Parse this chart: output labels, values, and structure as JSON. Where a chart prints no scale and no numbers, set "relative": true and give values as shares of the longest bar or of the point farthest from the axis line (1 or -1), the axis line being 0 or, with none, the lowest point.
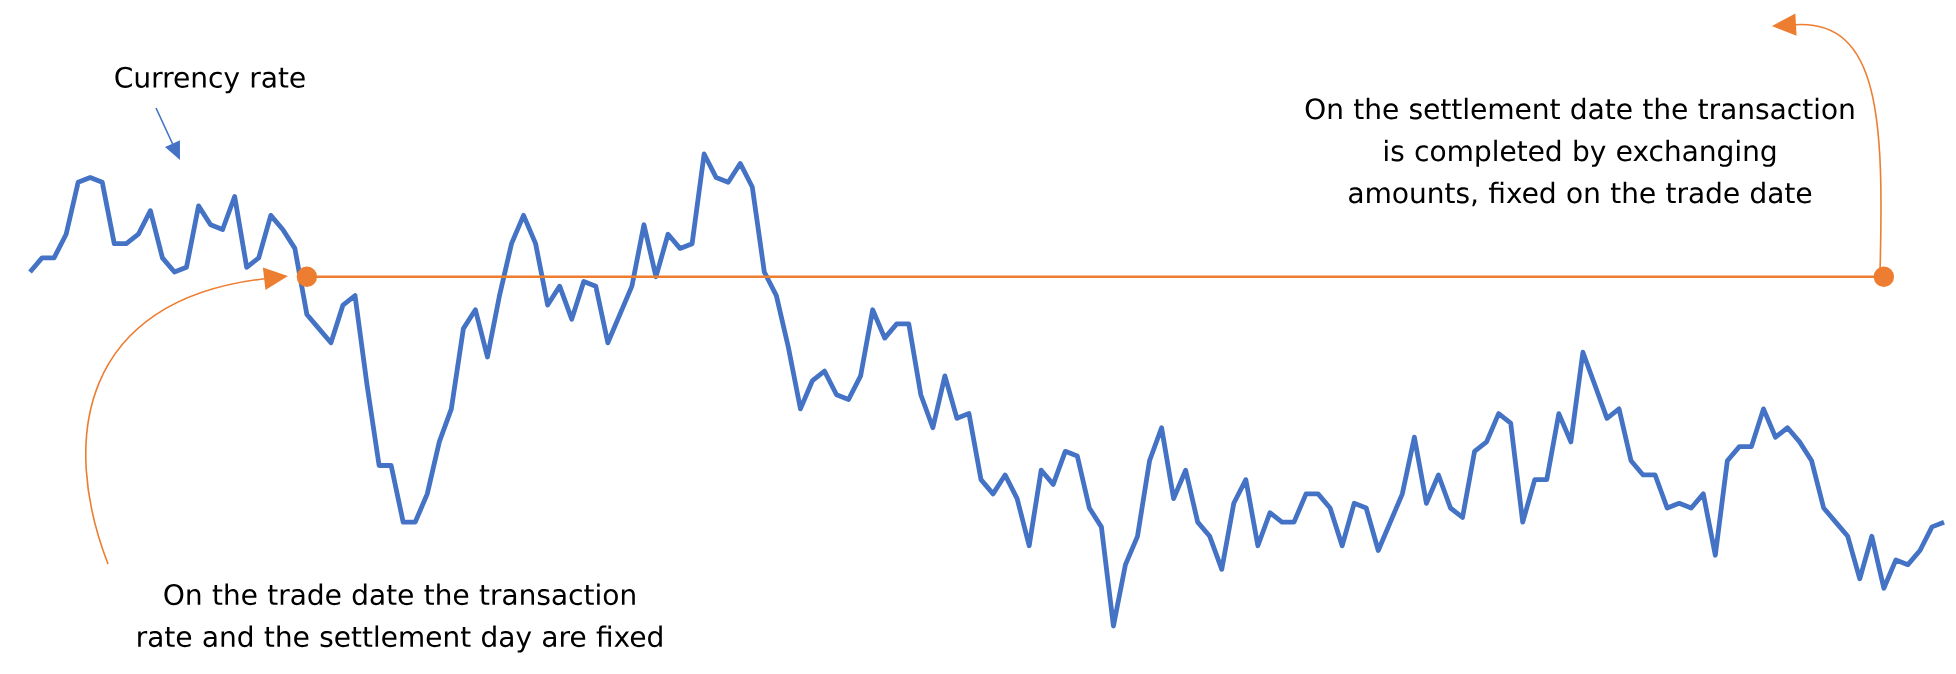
{
  "chart_data": {
    "type": "line",
    "relative": true,
    "categories": [
      null,
      null,
      null,
      null,
      null,
      null,
      null,
      null,
      null,
      null,
      null,
      null,
      null,
      null,
      null,
      null,
      null,
      null,
      null,
      null,
      null,
      null,
      null,
      null,
      null,
      null,
      null,
      null,
      null,
      null,
      null,
      null,
      null,
      null,
      null,
      null,
      null,
      null,
      null,
      null,
      null,
      null,
      null,
      null,
      null,
      null,
      null,
      null,
      null,
      null,
      null,
      null,
      null,
      null,
      null,
      null,
      null,
      null,
      null,
      null,
      null,
      null,
      null,
      null,
      null,
      null,
      null,
      null,
      null,
      null,
      null,
      null,
      null,
      null,
      null,
      null,
      null,
      null,
      null,
      null,
      null,
      null,
      null,
      null,
      null,
      null,
      null,
      null,
      null,
      null,
      null,
      null,
      null,
      null,
      null,
      null,
      null,
      null,
      null,
      null,
      null,
      null,
      null,
      null,
      null,
      null,
      null,
      null,
      null,
      null,
      null,
      null,
      null,
      null,
      null,
      null,
      null,
      null,
      null,
      null,
      null,
      null,
      null,
      null,
      null,
      null,
      null,
      null,
      null,
      null,
      null,
      null,
      null,
      null,
      null,
      null,
      null,
      null,
      null,
      null,
      null,
      null,
      null,
      null,
      null,
      null,
      null,
      null,
      null,
      null,
      null,
      null,
      null,
      null,
      null,
      null,
      null,
      null,
      null,
      null
    ],
    "series": [
      {
        "color": "#4472c4",
        "values": [
          0.75,
          0.78,
          0.78,
          0.83,
          0.94,
          0.95,
          0.94,
          0.81,
          0.81,
          0.83,
          0.88,
          0.78,
          0.75,
          0.76,
          0.89,
          0.85,
          0.84,
          0.91,
          0.76,
          0.78,
          0.87,
          0.84,
          0.8,
          0.66,
          0.63,
          0.6,
          0.68,
          0.7,
          0.51,
          0.34,
          0.34,
          0.22,
          0.22,
          0.28,
          0.39,
          0.46,
          0.63,
          0.67,
          0.57,
          0.7,
          0.81,
          0.87,
          0.81,
          0.68,
          0.72,
          0.65,
          0.73,
          0.72,
          0.6,
          0.66,
          0.72,
          0.85,
          0.74,
          0.83,
          0.8,
          0.81,
          1,
          0.95,
          0.94,
          0.98,
          0.93,
          0.75,
          0.7,
          0.59,
          0.46,
          0.52,
          0.54,
          0.49,
          0.48,
          0.53,
          0.67,
          0.61,
          0.64,
          0.64,
          0.49,
          0.42,
          0.53,
          0.44,
          0.45,
          0.31,
          0.28,
          0.32,
          0.27,
          0.17,
          0.33,
          0.3,
          0.37,
          0.36,
          0.25,
          0.21,
          0,
          0.13,
          0.19,
          0.35,
          0.42,
          0.27,
          0.33,
          0.22,
          0.19,
          0.12,
          0.26,
          0.31,
          0.17,
          0.24,
          0.22,
          0.22,
          0.28,
          0.28,
          0.25,
          0.17,
          0.26,
          0.25,
          0.16,
          0.22,
          0.28,
          0.4,
          0.26,
          0.32,
          0.25,
          0.23,
          0.37,
          0.39,
          0.45,
          0.43,
          0.22,
          0.31,
          0.31,
          0.45,
          0.39,
          0.58,
          0.51,
          0.44,
          0.46,
          0.35,
          0.32,
          0.32,
          0.25,
          0.26,
          0.25,
          0.28,
          0.15,
          0.35,
          0.38,
          0.38,
          0.46,
          0.4,
          0.42,
          0.39,
          0.35,
          0.25,
          0.22,
          0.19,
          0.1,
          0.19,
          0.08,
          0.14,
          0.13,
          0.16,
          0.21,
          0.22
        ]
      },
      {
        "color": "#ed7d31",
        "marker": "circle",
        "values": [
          null,
          null,
          null,
          null,
          null,
          null,
          null,
          null,
          null,
          null,
          null,
          null,
          null,
          null,
          null,
          null,
          null,
          null,
          null,
          null,
          null,
          null,
          null,
          0.74,
          null,
          null,
          null,
          null,
          null,
          null,
          null,
          null,
          null,
          null,
          null,
          null,
          null,
          null,
          null,
          null,
          null,
          null,
          null,
          null,
          null,
          null,
          null,
          null,
          null,
          null,
          null,
          null,
          null,
          null,
          null,
          null,
          null,
          null,
          null,
          null,
          null,
          null,
          null,
          null,
          null,
          null,
          null,
          null,
          null,
          null,
          null,
          null,
          null,
          null,
          null,
          null,
          null,
          null,
          null,
          null,
          null,
          null,
          null,
          null,
          null,
          null,
          null,
          null,
          null,
          null,
          null,
          null,
          null,
          null,
          null,
          null,
          null,
          null,
          null,
          null,
          null,
          null,
          null,
          null,
          null,
          null,
          null,
          null,
          null,
          null,
          null,
          null,
          null,
          null,
          null,
          null,
          null,
          null,
          null,
          null,
          null,
          null,
          null,
          null,
          null,
          null,
          null,
          null,
          null,
          null,
          null,
          null,
          null,
          null,
          null,
          null,
          null,
          null,
          null,
          null,
          null,
          null,
          null,
          null,
          null,
          null,
          null,
          null,
          null,
          null,
          null,
          null,
          null,
          null,
          0.74,
          null,
          null,
          null,
          null,
          null
        ]
      }
    ],
    "annotations": [
      "Currency rate",
      "On the trade date the transaction rate and the settlement day are fixed",
      "On the settlement date the transaction is completed by exchanging amounts, fixed on the trade date"
    ]
  }
}
